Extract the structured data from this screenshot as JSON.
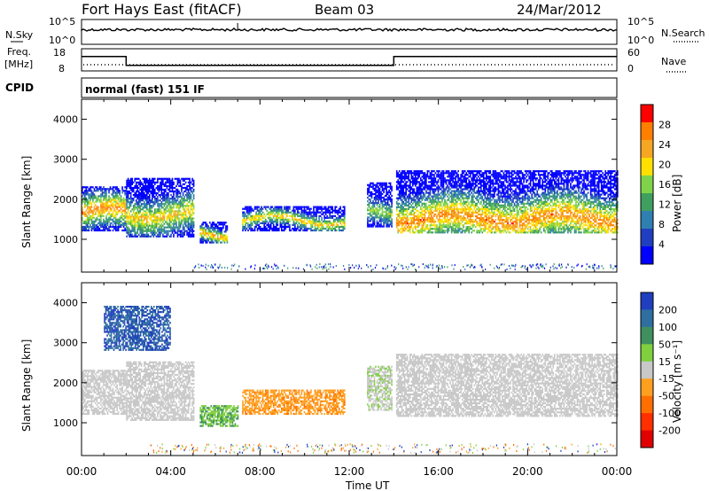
{
  "header": {
    "station": "Fort Hays East (fitACF)",
    "beam": "Beam 03",
    "date": "24/Mar/2012"
  },
  "noise_panel": {
    "left_label": "N.Sky",
    "right_label": "N.Search",
    "left_ticks": [
      "10^5",
      "10^0"
    ],
    "right_ticks": [
      "10^5",
      "10^0"
    ]
  },
  "freq_panel": {
    "label_line1": "Freq.",
    "label_line2": "[MHz]",
    "left_ticks": [
      "18",
      "8"
    ],
    "right_ticks": [
      "60",
      "0"
    ],
    "right_label": "Nave",
    "frequency_steps": [
      {
        "t": 0.0,
        "mhz": 14.5
      },
      {
        "t": 2.0,
        "mhz": 10.5
      },
      {
        "t": 14.0,
        "mhz": 14.5
      },
      {
        "t": 24.0,
        "mhz": 14.5
      }
    ]
  },
  "cpid": {
    "label": "CPID",
    "value": "normal (fast) 151 IF"
  },
  "x_axis": {
    "title": "Time UT",
    "ticks": [
      "00:00",
      "04:00",
      "08:00",
      "12:00",
      "16:00",
      "20:00",
      "00:00"
    ],
    "range_hours": [
      0,
      24
    ]
  },
  "power_panel": {
    "ylabel": "Slant Range [km]",
    "yticks": [
      "4000",
      "3000",
      "2000",
      "1000"
    ],
    "ylim_km": [
      180,
      4500
    ],
    "colorbar_label": "Power [dB]",
    "colorbar_ticks": [
      "28",
      "24",
      "20",
      "16",
      "12",
      "8",
      "4"
    ],
    "colorbar_colors": [
      "#ff0000",
      "#ff7f00",
      "#f5a623",
      "#ffe000",
      "#7fd34a",
      "#3f9f5f",
      "#2f7fb0",
      "#1f3fc0",
      "#0000ff"
    ]
  },
  "velocity_panel": {
    "ylabel": "Slant Range [km]",
    "yticks": [
      "4000",
      "3000",
      "2000",
      "1000"
    ],
    "ylim_km": [
      180,
      4500
    ],
    "colorbar_label": "Velocity [m s⁻¹]",
    "colorbar_ticks": [
      "200",
      "100",
      "50",
      "15",
      "-15",
      "-50",
      "-100",
      "-200"
    ],
    "colorbar_colors": [
      "#1f3fbf",
      "#2f6fa0",
      "#3f8f5f",
      "#7fcf3f",
      "#c8c8c8",
      "#ff9f1f",
      "#ff6f00",
      "#ff2f00",
      "#e00000"
    ]
  },
  "chart_data": [
    {
      "type": "heatmap",
      "title": "Power",
      "xlabel": "Time UT",
      "ylabel": "Slant Range [km]",
      "colorbar": "Power [dB]",
      "xlim": [
        0,
        24
      ],
      "ylim": [
        180,
        4500
      ],
      "bands": [
        {
          "t0": 0.0,
          "t1": 2.0,
          "r0": 1200,
          "r1": 2300,
          "peak_db": 26,
          "center_km": 1650
        },
        {
          "t0": 2.0,
          "t1": 5.0,
          "r0": 1050,
          "r1": 2500,
          "peak_db": 22,
          "center_km": 1600
        },
        {
          "t0": 5.3,
          "t1": 6.5,
          "r0": 900,
          "r1": 1400,
          "peak_db": 24,
          "center_km": 1100
        },
        {
          "t0": 7.2,
          "t1": 11.8,
          "r0": 1200,
          "r1": 1800,
          "peak_db": 22,
          "center_km": 1450
        },
        {
          "t0": 12.8,
          "t1": 13.9,
          "r0": 1300,
          "r1": 2400,
          "peak_db": 18,
          "center_km": 1600
        },
        {
          "t0": 14.1,
          "t1": 24.0,
          "r0": 1150,
          "r1": 2700,
          "peak_db": 26,
          "center_km": 1500
        }
      ]
    },
    {
      "type": "heatmap",
      "title": "Velocity",
      "xlabel": "Time UT",
      "ylabel": "Slant Range [km]",
      "colorbar": "Velocity [m s⁻¹]",
      "xlim": [
        0,
        24
      ],
      "ylim": [
        180,
        4500
      ],
      "bands": [
        {
          "t0": 0.0,
          "t1": 2.0,
          "r0": 1200,
          "r1": 2300,
          "velocity": 0
        },
        {
          "t0": 1.0,
          "t1": 4.0,
          "r0": 2800,
          "r1": 3900,
          "velocity": 150
        },
        {
          "t0": 2.0,
          "t1": 5.0,
          "r0": 1050,
          "r1": 2500,
          "velocity": 0
        },
        {
          "t0": 5.3,
          "t1": 7.0,
          "r0": 900,
          "r1": 1400,
          "velocity": 30
        },
        {
          "t0": 7.2,
          "t1": 11.8,
          "r0": 1200,
          "r1": 1800,
          "velocity": -40
        },
        {
          "t0": 12.8,
          "t1": 13.9,
          "r0": 1300,
          "r1": 2400,
          "velocity": 10
        },
        {
          "t0": 14.1,
          "t1": 24.0,
          "r0": 1150,
          "r1": 2700,
          "velocity": 0
        }
      ]
    }
  ]
}
